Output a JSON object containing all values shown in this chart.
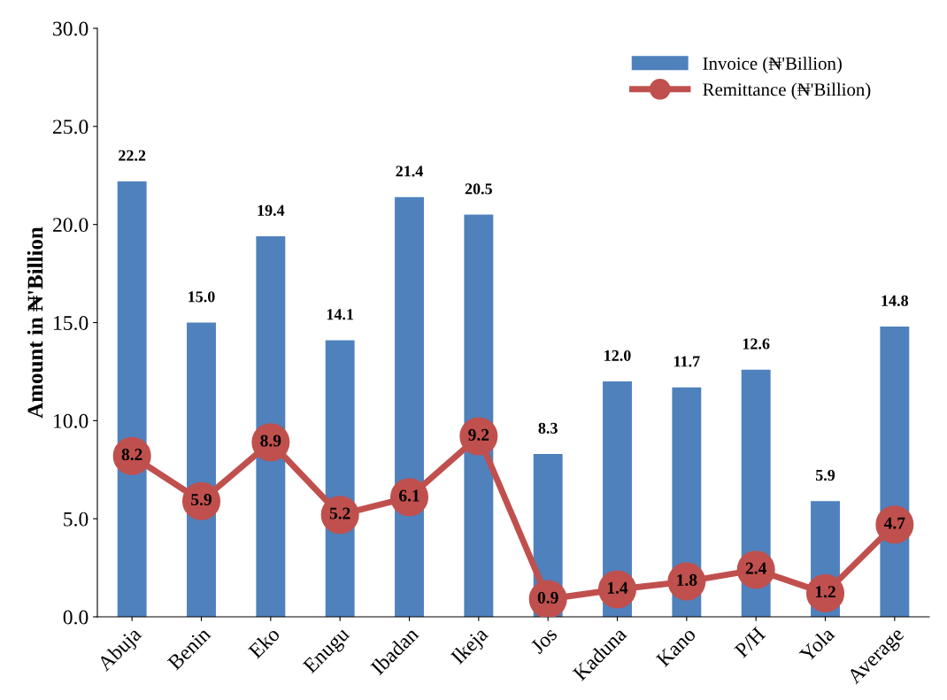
{
  "chart_data": {
    "type": "bar",
    "ylabel": "Amount in ₦'Billion",
    "categories": [
      "Abuja",
      "Benin",
      "Eko",
      "Enugu",
      "Ibadan",
      "Ikeja",
      "Jos",
      "Kaduna",
      "Kano",
      "P/H",
      "Yola",
      "Average"
    ],
    "series": [
      {
        "name": "Invoice (₦'Billion)",
        "color": "#4f81bd",
        "values": [
          22.2,
          15.0,
          19.4,
          14.1,
          21.4,
          20.5,
          8.3,
          12.0,
          11.7,
          12.6,
          5.9,
          14.8
        ],
        "value_labels": [
          "22.2",
          "15.0",
          "19.4",
          "14.1",
          "21.4",
          "20.5",
          "8.3",
          "12.0",
          "11.7",
          "12.6",
          "5.9",
          "14.8"
        ]
      },
      {
        "name": "Remittance (₦'Billion)",
        "type": "line",
        "color": "#c0504d",
        "marker": "circle",
        "values": [
          8.2,
          5.9,
          8.9,
          5.2,
          6.1,
          9.2,
          0.9,
          1.4,
          1.8,
          2.4,
          1.2,
          4.7
        ],
        "value_labels": [
          "8.2",
          "5.9",
          "8.9",
          "5.2",
          "6.1",
          "9.2",
          "0.9",
          "1.4",
          "1.8",
          "2.4",
          "1.2",
          "4.7"
        ]
      }
    ],
    "ylim": [
      0,
      30
    ],
    "yticks": [
      {
        "value": 0,
        "label": "0.0"
      },
      {
        "value": 5,
        "label": "5.0"
      },
      {
        "value": 10,
        "label": "10.0"
      },
      {
        "value": 15,
        "label": "15.0"
      },
      {
        "value": 20,
        "label": "20.0"
      },
      {
        "value": 25,
        "label": "25.0"
      },
      {
        "value": 30,
        "label": "30.0"
      }
    ],
    "legend": "top right",
    "grid": false
  }
}
